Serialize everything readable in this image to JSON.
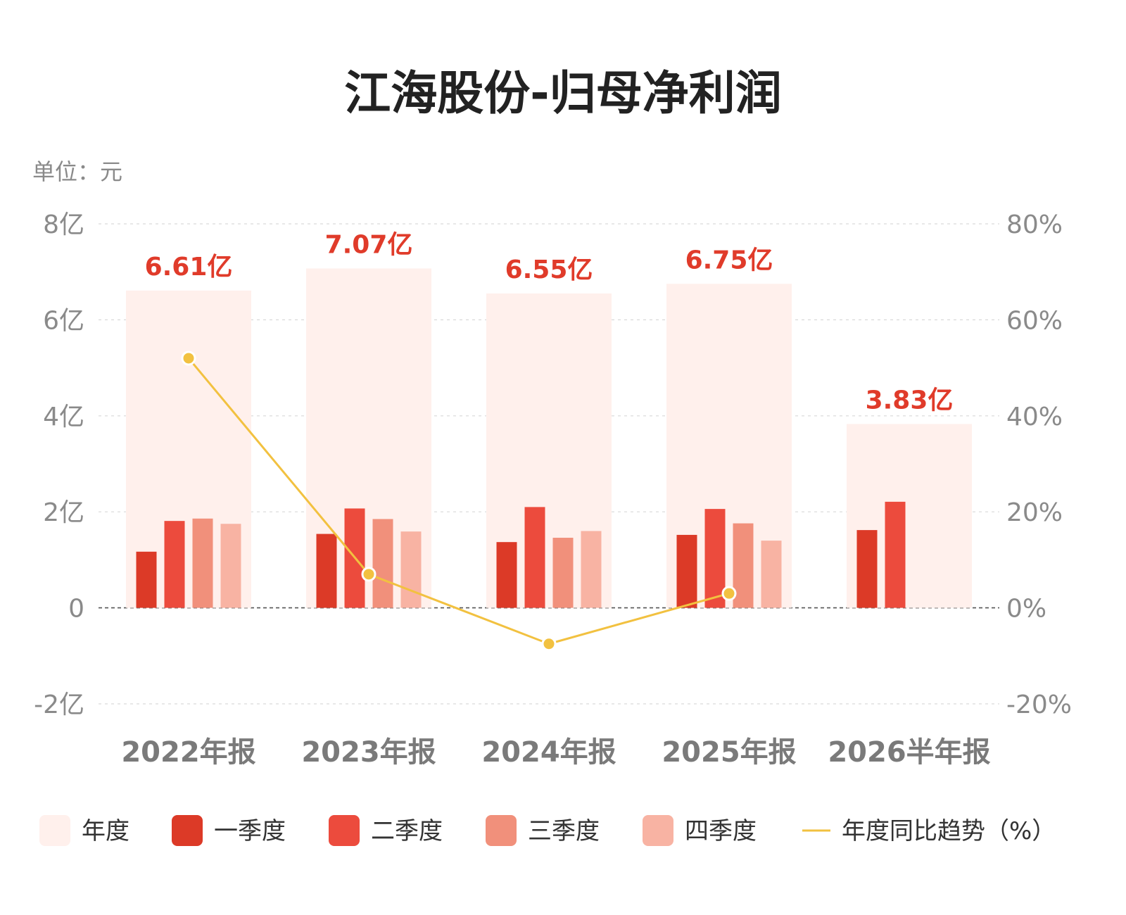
{
  "chart_data": {
    "type": "bar",
    "title": "江海股份-归母净利润",
    "unit_label": "单位：元",
    "categories": [
      "2022年报",
      "2023年报",
      "2024年报",
      "2025年报",
      "2026半年报"
    ],
    "annual": {
      "name": "年度",
      "values": [
        661000000,
        707000000,
        655000000,
        675000000,
        383000000
      ],
      "labels": [
        "6.61亿",
        "7.07亿",
        "6.55亿",
        "6.75亿",
        "3.83亿"
      ]
    },
    "series": [
      {
        "name": "一季度",
        "values": [
          117000000,
          154000000,
          137000000,
          152000000,
          162000000
        ]
      },
      {
        "name": "二季度",
        "values": [
          181000000,
          207000000,
          210000000,
          206000000,
          221000000
        ]
      },
      {
        "name": "三季度",
        "values": [
          186000000,
          185000000,
          146000000,
          176000000,
          null
        ]
      },
      {
        "name": "四季度",
        "values": [
          175000000,
          159000000,
          160000000,
          140000000,
          null
        ]
      }
    ],
    "yoy": {
      "name": "年度同比趋势（%）",
      "values": [
        52,
        7,
        -7.5,
        3,
        null
      ]
    },
    "y_left": {
      "ticks": [
        -200000000,
        0,
        200000000,
        400000000,
        600000000,
        800000000
      ],
      "tick_labels": [
        "-2亿",
        "0",
        "2亿",
        "4亿",
        "6亿",
        "8亿"
      ],
      "ylim": [
        -200000000,
        800000000
      ]
    },
    "y_right": {
      "ticks": [
        -20,
        0,
        20,
        40,
        60,
        80
      ],
      "tick_labels": [
        "-20%",
        "0%",
        "20%",
        "40%",
        "60%",
        "80%"
      ],
      "ylim": [
        -20,
        80
      ]
    },
    "grid": true,
    "legend_position": "bottom",
    "colors": {
      "annual": "#fff0ec",
      "q1": "#dc3a27",
      "q2": "#ec4b3d",
      "q3": "#f1907b",
      "q4": "#f8b3a3",
      "yoy": "#f2c140",
      "grid": "#d9d9d9",
      "zero_line": "#555555"
    }
  }
}
